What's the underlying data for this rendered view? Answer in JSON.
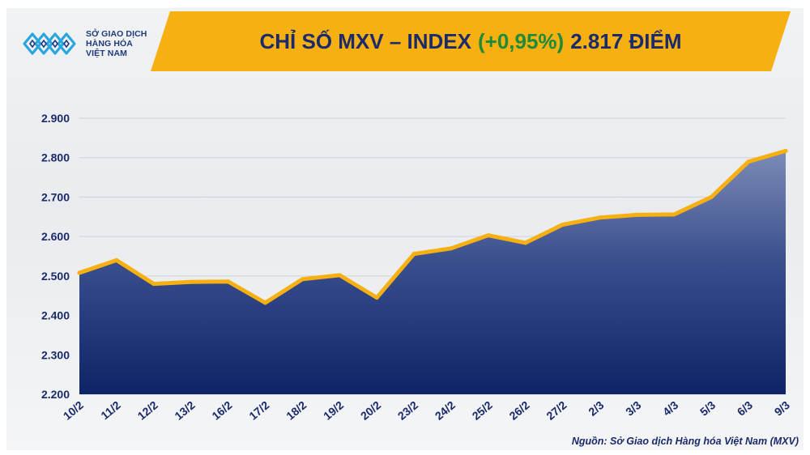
{
  "logo": {
    "line1": "SỞ GIAO DỊCH",
    "line2": "HÀNG HÓA",
    "line3": "VIỆT NAM",
    "color": "#1f3a7a"
  },
  "title": {
    "prefix": "CHỈ SỐ MXV – INDEX",
    "change": "(+0,95%)",
    "value": "2.817 ĐIỂM"
  },
  "colors": {
    "banner": "#f6b011",
    "line": "#f6b011",
    "area_top": "#7c8bb6",
    "area_bottom": "#0f2466",
    "title_text": "#1a2a6b",
    "change_text": "#1f8a3a"
  },
  "source": "Nguồn: Sở Giao dịch Hàng hóa Việt Nam (MXV)",
  "chart_data": {
    "type": "area",
    "title": "CHỈ SỐ MXV – INDEX (+0,95%) 2.817 ĐIỂM",
    "xlabel": "",
    "ylabel": "",
    "categories": [
      "10/2",
      "11/2",
      "12/2",
      "13/2",
      "16/2",
      "17/2",
      "18/2",
      "19/2",
      "20/2",
      "23/2",
      "24/2",
      "25/2",
      "26/2",
      "27/2",
      "2/3",
      "3/3",
      "4/3",
      "5/3",
      "6/3",
      "9/3"
    ],
    "values": [
      2508,
      2540,
      2480,
      2485,
      2486,
      2432,
      2492,
      2502,
      2445,
      2556,
      2570,
      2603,
      2584,
      2630,
      2648,
      2655,
      2656,
      2700,
      2790,
      2817
    ],
    "ylim": [
      2200,
      2900
    ],
    "yticks": [
      2200,
      2300,
      2400,
      2500,
      2600,
      2700,
      2800,
      2900
    ],
    "ytick_labels": [
      "2.200",
      "2.300",
      "2.400",
      "2.500",
      "2.600",
      "2.700",
      "2.800",
      "2.900"
    ],
    "grid": true,
    "legend": "none"
  }
}
